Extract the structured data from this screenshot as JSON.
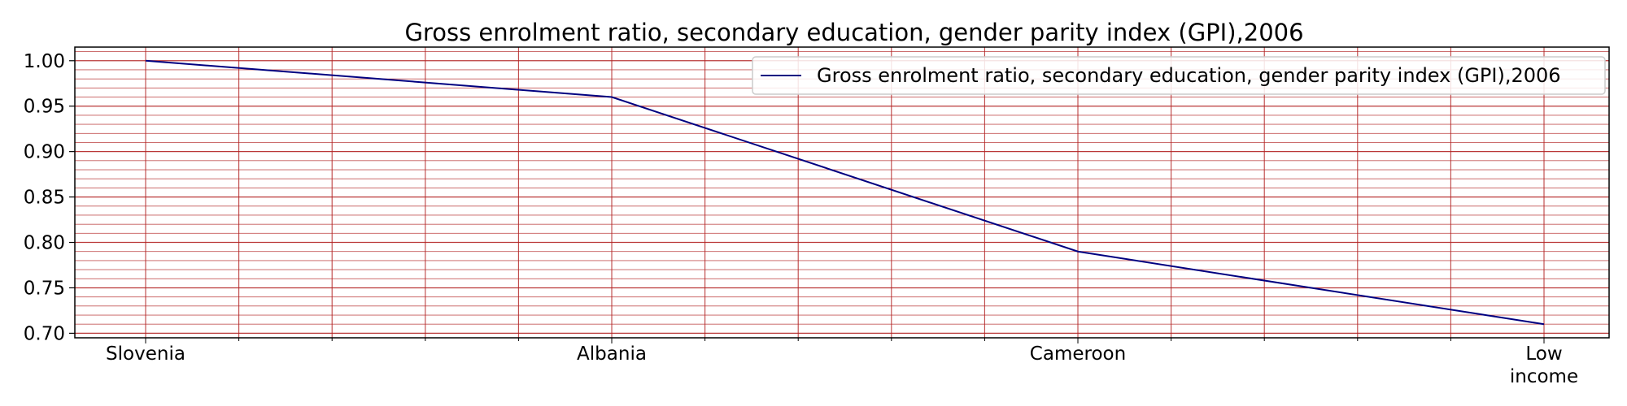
{
  "chart_data": {
    "type": "line",
    "title": "Gross enrolment ratio, secondary education, gender parity index (GPI),2006",
    "xlabel": "",
    "ylabel": "",
    "categories": [
      "Slovenia",
      "Albania",
      "Cameroon",
      "Low income"
    ],
    "series": [
      {
        "name": "Gross enrolment ratio, secondary education, gender parity index (GPI),2006",
        "values": [
          1.0,
          0.96,
          0.79,
          0.71
        ],
        "color": "#000080"
      }
    ],
    "ylim": [
      0.695,
      1.015
    ],
    "yticks": [
      "0.70",
      "0.75",
      "0.80",
      "0.85",
      "0.90",
      "0.95",
      "1.00"
    ],
    "grid": true,
    "grid_color": "#b22222",
    "legend_position": "top-right"
  }
}
